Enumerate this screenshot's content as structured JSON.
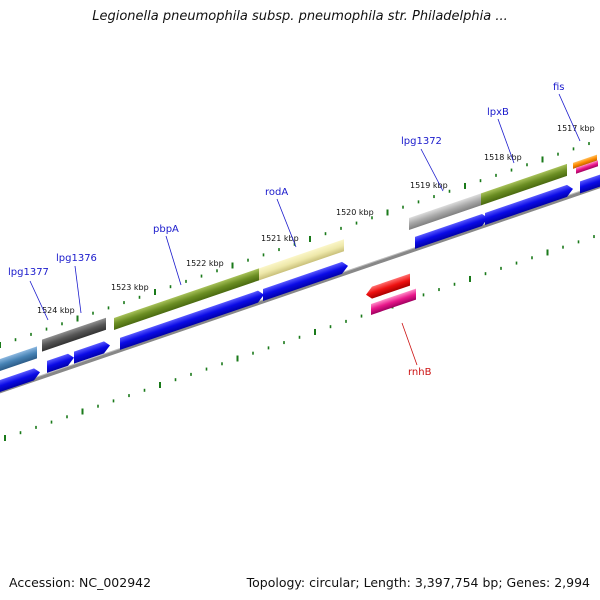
{
  "title": "Legionella pneumophila subsp. pneumophila str. Philadelphia ...",
  "footer": {
    "accession": "Accession: NC_002942",
    "topology": "Topology: circular; Length: 3,397,754 bp; Genes: 2,994"
  },
  "kbp_labels": [
    "1524 kbp",
    "1523 kbp",
    "1522 kbp",
    "1521 kbp",
    "1520 kbp",
    "1519 kbp",
    "1518 kbp",
    "1517 kbp"
  ],
  "gene_labels": {
    "lpg1377": "lpg1377",
    "lpg1376": "lpg1376",
    "pbpA": "pbpA",
    "rodA": "rodA",
    "lpg1372": "lpg1372",
    "lpxB": "lpxB",
    "fis": "fis",
    "rnhB": "rnhB"
  },
  "colors": {
    "forward_cds": "#0a0ae6",
    "olive": "#6b8e23",
    "khaki": "#eee8aa",
    "gray": "#a9a9a9",
    "dimgray": "#555555",
    "steelblue": "#4682b4",
    "red": "#ee1111",
    "pink": "#e8178a",
    "orange": "#ff8c00",
    "tick": "#1a7a1a",
    "backbone": "#888888"
  }
}
